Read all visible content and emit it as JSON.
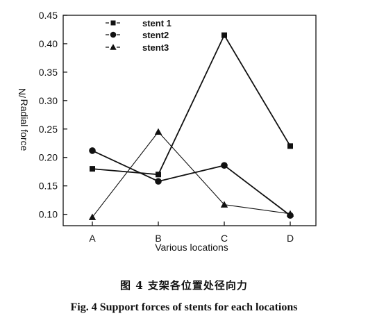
{
  "chart_data": {
    "type": "line",
    "categories": [
      "A",
      "B",
      "C",
      "D"
    ],
    "series": [
      {
        "name": "stent 1",
        "marker": "square",
        "values": [
          0.18,
          0.17,
          0.415,
          0.22
        ]
      },
      {
        "name": "stent2",
        "marker": "circle",
        "values": [
          0.212,
          0.158,
          0.186,
          0.098
        ]
      },
      {
        "name": "stent3",
        "marker": "triangle",
        "values": [
          0.095,
          0.245,
          0.117,
          0.101
        ]
      }
    ],
    "xlabel": "Various locations",
    "ylabel_line1": "N/",
    "ylabel_line2": "Radial force",
    "ylim": [
      0.08,
      0.45
    ],
    "yticks": [
      "0.10",
      "0.15",
      "0.20",
      "0.25",
      "0.30",
      "0.35",
      "0.40",
      "0.45"
    ],
    "legend_position": "top-left",
    "grid": false
  },
  "caption": {
    "chinese": "图 4   支架各位置处径向力",
    "english": "Fig.  4    Support forces of stents for each locations"
  },
  "colors": {
    "ink": "#111111"
  }
}
